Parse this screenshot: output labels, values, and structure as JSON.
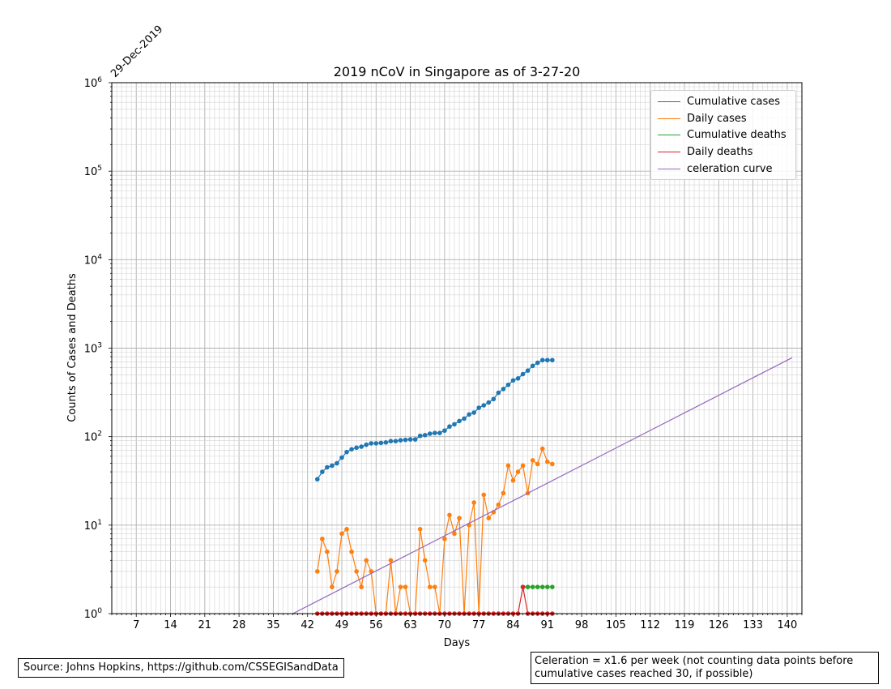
{
  "chart_data": {
    "type": "line",
    "title": "2019 nCoV in Singapore as of 3-27-20",
    "xlabel": "Days",
    "ylabel": "Counts of Cases and Deaths",
    "date_label": "29-Dec-2019",
    "xlim": [
      2,
      143
    ],
    "ylim": [
      1,
      1000000
    ],
    "yscale": "log",
    "x_ticks": [
      7,
      14,
      21,
      28,
      35,
      42,
      49,
      56,
      63,
      70,
      77,
      84,
      91,
      98,
      105,
      112,
      119,
      126,
      133,
      140
    ],
    "y_tick_labels": [
      {
        "value": 1,
        "base": "10",
        "exp": "0"
      },
      {
        "value": 10,
        "base": "10",
        "exp": "1"
      },
      {
        "value": 100,
        "base": "10",
        "exp": "2"
      },
      {
        "value": 1000,
        "base": "10",
        "exp": "3"
      },
      {
        "value": 10000,
        "base": "10",
        "exp": "4"
      },
      {
        "value": 100000,
        "base": "10",
        "exp": "5"
      },
      {
        "value": 1000000,
        "base": "10",
        "exp": "6"
      }
    ],
    "grid": true,
    "legend_position": "top-right",
    "series": [
      {
        "name": "Cumulative cases",
        "color": "#1f77b4",
        "marker": true,
        "x": [
          44,
          45,
          46,
          47,
          48,
          49,
          50,
          51,
          52,
          53,
          54,
          55,
          56,
          57,
          58,
          59,
          60,
          61,
          62,
          63,
          64,
          65,
          66,
          67,
          68,
          69,
          70,
          71,
          72,
          73,
          74,
          75,
          76,
          77,
          78,
          79,
          80,
          81,
          82,
          83,
          84,
          85,
          86,
          87,
          88,
          89,
          90,
          91,
          92
        ],
        "values": [
          33,
          40,
          45,
          47,
          50,
          58,
          67,
          72,
          75,
          77,
          81,
          84,
          84,
          85,
          86,
          89,
          89,
          91,
          92,
          93,
          93,
          102,
          104,
          108,
          110,
          110,
          117,
          130,
          138,
          150,
          160,
          178,
          187,
          212,
          226,
          243,
          266,
          313,
          345,
          385,
          432,
          455,
          509,
          558,
          631,
          683,
          732,
          732,
          732
        ]
      },
      {
        "name": "Daily cases",
        "color": "#ff7f0e",
        "marker": true,
        "x": [
          44,
          45,
          46,
          47,
          48,
          49,
          50,
          51,
          52,
          53,
          54,
          55,
          56,
          57,
          58,
          59,
          60,
          61,
          62,
          63,
          64,
          65,
          66,
          67,
          68,
          69,
          70,
          71,
          72,
          73,
          74,
          75,
          76,
          77,
          78,
          79,
          80,
          81,
          82,
          83,
          84,
          85,
          86,
          87,
          88,
          89,
          90,
          91,
          92
        ],
        "values": [
          3,
          7,
          5,
          2,
          3,
          8,
          9,
          5,
          3,
          2,
          4,
          3,
          0,
          0,
          0,
          4,
          0,
          2,
          2,
          0,
          0,
          9,
          4,
          2,
          2,
          0,
          7,
          13,
          8,
          12,
          0,
          10,
          18,
          0,
          22,
          12,
          14,
          17,
          23,
          47,
          32,
          40,
          47,
          23,
          54,
          49,
          73,
          52,
          49
        ]
      },
      {
        "name": "Cumulative deaths",
        "color": "#2ca02c",
        "marker": true,
        "x": [
          86,
          87,
          88,
          89,
          90,
          91,
          92
        ],
        "values": [
          2,
          2,
          2,
          2,
          2,
          2,
          2
        ]
      },
      {
        "name": "Daily deaths",
        "color": "#d62728",
        "marker": true,
        "x": [
          44,
          45,
          46,
          47,
          48,
          49,
          50,
          51,
          52,
          53,
          54,
          55,
          56,
          57,
          58,
          59,
          60,
          61,
          62,
          63,
          64,
          65,
          66,
          67,
          68,
          69,
          70,
          71,
          72,
          73,
          74,
          75,
          76,
          77,
          78,
          79,
          80,
          81,
          82,
          83,
          84,
          85,
          86,
          87,
          88,
          89,
          90,
          91,
          92
        ],
        "values": [
          1,
          1,
          1,
          1,
          1,
          1,
          1,
          1,
          1,
          1,
          1,
          1,
          1,
          1,
          1,
          1,
          1,
          1,
          1,
          1,
          1,
          1,
          1,
          1,
          1,
          1,
          1,
          1,
          1,
          1,
          1,
          1,
          1,
          1,
          1,
          1,
          1,
          1,
          1,
          1,
          1,
          1,
          2,
          1,
          1,
          1,
          1,
          1,
          1
        ]
      },
      {
        "name": "celeration curve",
        "color": "#9467bd",
        "marker": false,
        "x": [
          39,
          141
        ],
        "values": [
          1.0,
          780
        ]
      }
    ]
  },
  "source_text": "Source: Johns Hopkins, https://github.com/CSSEGISandData",
  "celeration_note": "Celeration = x1.6 per week (not counting data points before cumulative cases reached 30, if possible)"
}
